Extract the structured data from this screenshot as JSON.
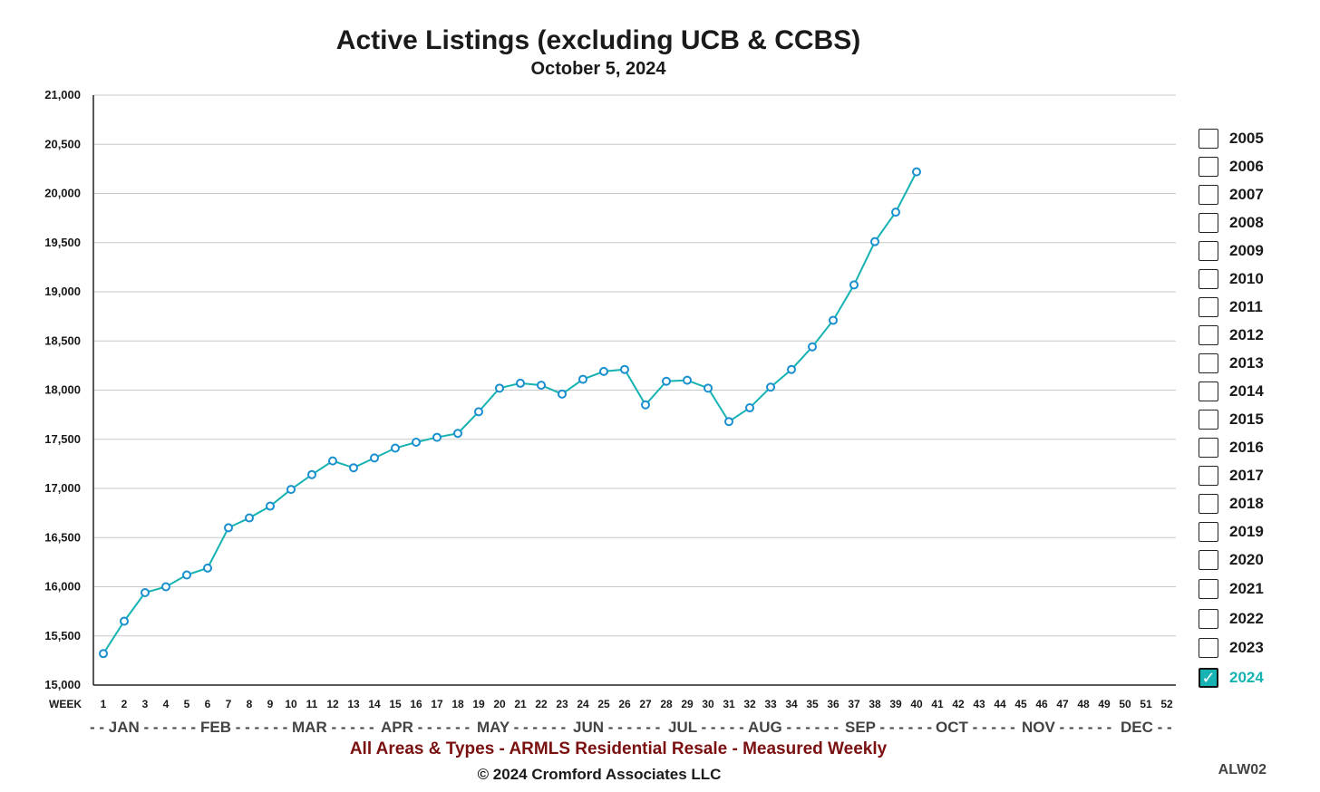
{
  "chart_data": {
    "type": "line",
    "title": "Active Listings (excluding UCB & CCBS)",
    "subtitle": "October 5, 2024",
    "xlabel": "WEEK",
    "ylim": [
      15000,
      21000
    ],
    "yticks": [
      15000,
      15500,
      16000,
      16500,
      17000,
      17500,
      18000,
      18500,
      19000,
      19500,
      20000,
      20500,
      21000
    ],
    "ytick_labels": [
      "15,000",
      "15,500",
      "16,000",
      "16,500",
      "17,000",
      "17,500",
      "18,000",
      "18,500",
      "19,000",
      "19,500",
      "20,000",
      "20,500",
      "21,000"
    ],
    "xlim": [
      1,
      52
    ],
    "x_ticks": [
      "1",
      "2",
      "3",
      "4",
      "5",
      "6",
      "7",
      "8",
      "9",
      "10",
      "11",
      "12",
      "13",
      "14",
      "15",
      "16",
      "17",
      "18",
      "19",
      "20",
      "21",
      "22",
      "23",
      "24",
      "25",
      "26",
      "27",
      "28",
      "29",
      "30",
      "31",
      "32",
      "33",
      "34",
      "35",
      "36",
      "37",
      "38",
      "39",
      "40",
      "41",
      "42",
      "43",
      "44",
      "45",
      "46",
      "47",
      "48",
      "49",
      "50",
      "51",
      "52"
    ],
    "month_axis": [
      {
        "label": "- - JAN - - - - - -"
      },
      {
        "label": "FEB - - - - - -"
      },
      {
        "label": "MAR - - - - -"
      },
      {
        "label": "APR - - - - - -"
      },
      {
        "label": "MAY - - - - - -"
      },
      {
        "label": "JUN - - - - - -"
      },
      {
        "label": "JUL - - - - -"
      },
      {
        "label": "AUG - - - - - -"
      },
      {
        "label": "SEP - - - - - -"
      },
      {
        "label": "OCT - - - - -"
      },
      {
        "label": "NOV - - - - - -"
      },
      {
        "label": "DEC - -"
      }
    ],
    "grid": true,
    "series": [
      {
        "name": "2024",
        "color": "#17b3b3",
        "marker_color": "#1a8fd0",
        "x": [
          1,
          2,
          3,
          4,
          5,
          6,
          7,
          8,
          9,
          10,
          11,
          12,
          13,
          14,
          15,
          16,
          17,
          18,
          19,
          20,
          21,
          22,
          23,
          24,
          25,
          26,
          27,
          28,
          29,
          30,
          31,
          32,
          33,
          34,
          35,
          36,
          37,
          38,
          39,
          40
        ],
        "values": [
          15320,
          15650,
          15940,
          16000,
          16120,
          16190,
          16600,
          16700,
          16820,
          16990,
          17140,
          17280,
          17210,
          17310,
          17410,
          17470,
          17520,
          17560,
          17780,
          18020,
          18070,
          18050,
          17960,
          18110,
          18190,
          18210,
          17850,
          18090,
          18100,
          18020,
          17680,
          17820,
          18030,
          18210,
          18440,
          18710,
          19070,
          19510,
          19810,
          20220
        ]
      }
    ],
    "legend_placement": "right",
    "legend": [
      {
        "label": "2005",
        "checked": false
      },
      {
        "label": "2006",
        "checked": false
      },
      {
        "label": "2007",
        "checked": false
      },
      {
        "label": "2008",
        "checked": false
      },
      {
        "label": "2009",
        "checked": false
      },
      {
        "label": "2010",
        "checked": false
      },
      {
        "label": "2011",
        "checked": false
      },
      {
        "label": "2012",
        "checked": false
      },
      {
        "label": "2013",
        "checked": false
      },
      {
        "label": "2014",
        "checked": false
      },
      {
        "label": "2015",
        "checked": false
      },
      {
        "label": "2016",
        "checked": false
      },
      {
        "label": "2017",
        "checked": false
      },
      {
        "label": "2018",
        "checked": false
      },
      {
        "label": "2019",
        "checked": false
      },
      {
        "label": "2020",
        "checked": false
      },
      {
        "label": "2021",
        "checked": false
      },
      {
        "label": "2022",
        "checked": false
      },
      {
        "label": "2023",
        "checked": false
      },
      {
        "label": "2024",
        "checked": true
      }
    ],
    "footer": "All Areas & Types - ARMLS Residential Resale - Measured Weekly",
    "copyright": "© 2024 Cromford Associates LLC",
    "code": "ALW02"
  }
}
